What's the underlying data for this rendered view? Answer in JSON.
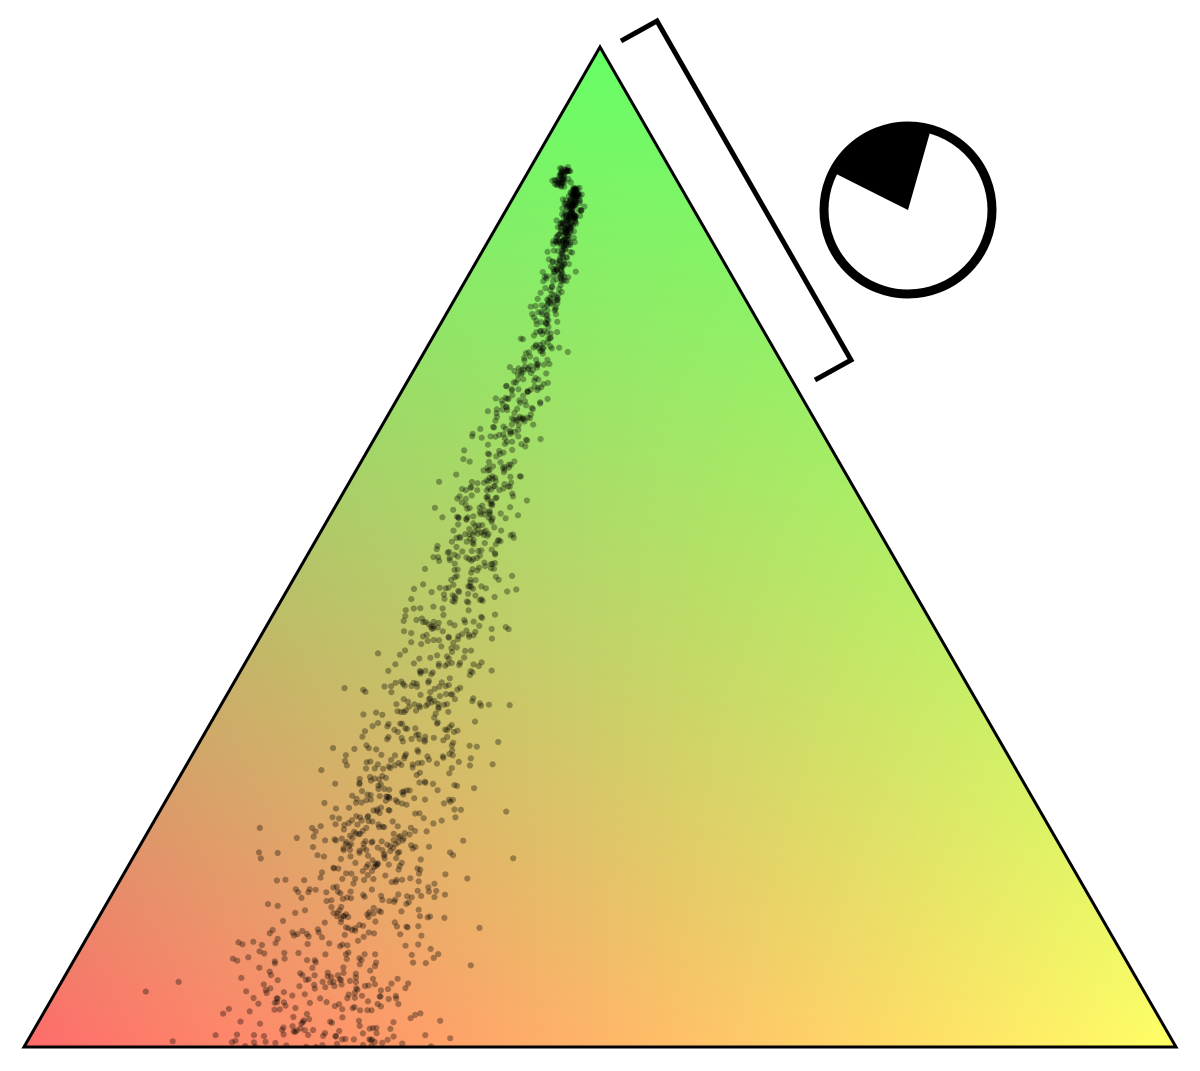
{
  "chart_data": {
    "type": "scatter",
    "subtype": "ternary",
    "title": "",
    "corner_labels": [],
    "colors": {
      "bottom_left": "#ff6b6b",
      "bottom_right": "#ffff66",
      "top": "#66ff66",
      "point": "#000000",
      "outline": "#000000"
    },
    "point_opacity": 0.33,
    "legend": {
      "type": "bracket-with-pie-glyph",
      "placement": "top-right",
      "filled_fraction": 0.22
    },
    "grid": false,
    "cluster_description": {
      "point_count": 1500,
      "spine": [
        {
          "top_fraction": 0.86,
          "left_share": 0.65
        },
        {
          "top_fraction": 0.7,
          "left_share": 0.68
        },
        {
          "top_fraction": 0.55,
          "left_share": 0.72
        },
        {
          "top_fraction": 0.4,
          "left_share": 0.73
        },
        {
          "top_fraction": 0.25,
          "left_share": 0.74
        },
        {
          "top_fraction": 0.1,
          "left_share": 0.75
        },
        {
          "top_fraction": 0.0,
          "left_share": 0.75
        }
      ]
    }
  }
}
